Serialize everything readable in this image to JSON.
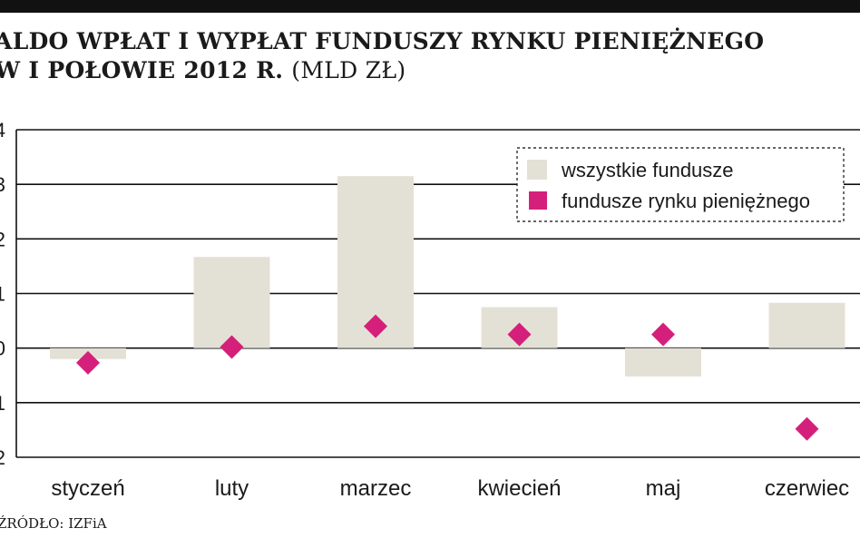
{
  "header": {
    "title_line1": "ALDO WPŁAT I WYPŁAT FUNDUSZY RYNKU PIENIĘŻNEGO",
    "title_line2": "W I POŁOWIE 2012 R.",
    "unit": "(MLD ZŁ)"
  },
  "source": "ŹRÓDŁO: IZFiA",
  "colors": {
    "bar": "#e3e1d6",
    "marker": "#d4207a",
    "grid": "#111111",
    "top_bar": "#111111"
  },
  "chart_data": {
    "type": "bar",
    "categories": [
      "styczeń",
      "luty",
      "marzec",
      "kwiecień",
      "maj",
      "czerwiec"
    ],
    "series": [
      {
        "name": "wszystkie fundusze",
        "mark": "bar",
        "values": [
          -0.2,
          1.67,
          3.15,
          0.75,
          -0.52,
          0.83
        ]
      },
      {
        "name": "fundusze rynku pieniężnego",
        "mark": "diamond",
        "values": [
          -0.27,
          0.02,
          0.4,
          0.25,
          0.25,
          -1.48
        ]
      }
    ],
    "ylim": [
      -2,
      4
    ],
    "yticks": [
      4,
      3,
      2,
      1,
      0,
      -1,
      -2
    ],
    "ytick_labels": [
      "4",
      "3",
      "2",
      "1",
      "0",
      "1",
      "2"
    ],
    "grid": true,
    "legend_position": "top-right"
  }
}
